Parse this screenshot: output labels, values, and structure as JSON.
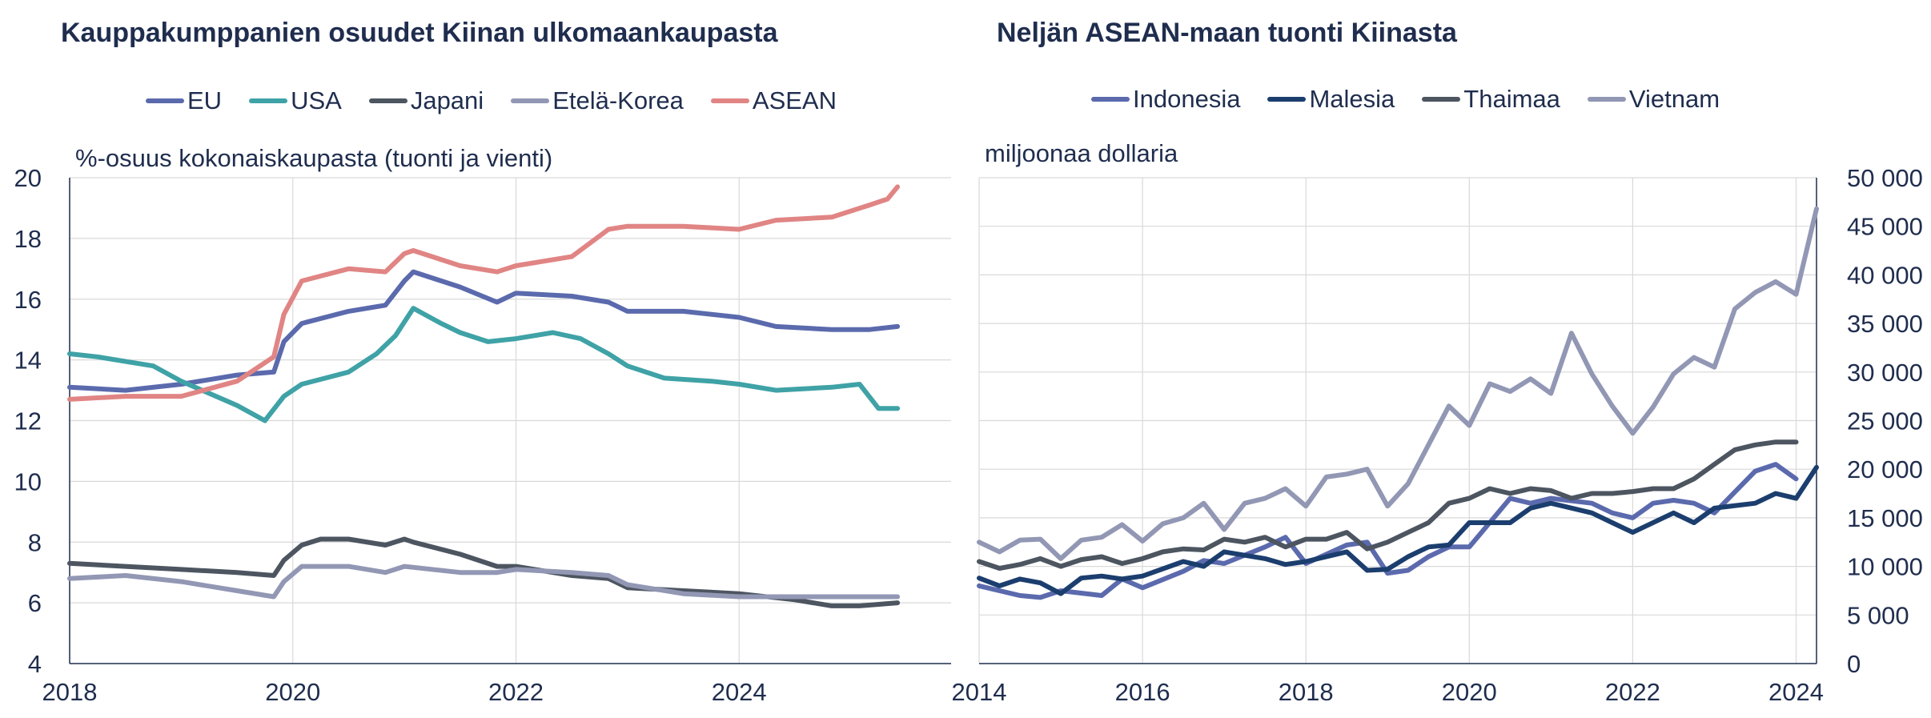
{
  "chart_data": [
    {
      "type": "line",
      "title": "Kauppakumppanien osuudet Kiinan ulkomaankaupasta",
      "ylabel": "%-osuus kokonaiskaupasta (tuonti ja vienti)",
      "ylim": [
        4,
        20
      ],
      "yticks": [
        "20",
        "18",
        "16",
        "14",
        "12",
        "10",
        "8",
        "6",
        "4"
      ],
      "xlim": [
        2018,
        2025.9
      ],
      "xticks": [
        "2018",
        "2020",
        "2022",
        "2024"
      ],
      "grid": true,
      "legend": "top",
      "series": [
        {
          "name": "EU",
          "color": "#5b6aad",
          "x": [
            2018.0,
            2018.5,
            2019.0,
            2019.5,
            2019.83,
            2019.92,
            2020.08,
            2020.5,
            2020.83,
            2021.0,
            2021.08,
            2021.5,
            2021.83,
            2022.0,
            2022.5,
            2022.83,
            2023.0,
            2023.5,
            2024.0,
            2024.33,
            2024.83,
            2025.17,
            2025.42
          ],
          "y": [
            13.1,
            13.0,
            13.2,
            13.5,
            13.6,
            14.6,
            15.2,
            15.6,
            15.8,
            16.6,
            16.9,
            16.4,
            15.9,
            16.2,
            16.1,
            15.9,
            15.6,
            15.6,
            15.4,
            15.1,
            15.0,
            15.0,
            15.1
          ]
        },
        {
          "name": "USA",
          "color": "#3fa2a6",
          "x": [
            2018.0,
            2018.25,
            2018.75,
            2019.0,
            2019.25,
            2019.5,
            2019.75,
            2019.92,
            2020.08,
            2020.5,
            2020.75,
            2020.92,
            2021.08,
            2021.33,
            2021.5,
            2021.75,
            2022.0,
            2022.33,
            2022.58,
            2022.83,
            2023.0,
            2023.33,
            2023.75,
            2024.0,
            2024.33,
            2024.83,
            2025.08,
            2025.25,
            2025.42
          ],
          "y": [
            14.2,
            14.1,
            13.8,
            13.3,
            12.9,
            12.5,
            12.0,
            12.8,
            13.2,
            13.6,
            14.2,
            14.8,
            15.7,
            15.2,
            14.9,
            14.6,
            14.7,
            14.9,
            14.7,
            14.2,
            13.8,
            13.4,
            13.3,
            13.2,
            13.0,
            13.1,
            13.2,
            12.4,
            12.4
          ]
        },
        {
          "name": "Japani",
          "color": "#4c5560",
          "x": [
            2018.0,
            2018.5,
            2019.0,
            2019.5,
            2019.83,
            2019.92,
            2020.08,
            2020.25,
            2020.5,
            2020.83,
            2021.0,
            2021.08,
            2021.5,
            2021.83,
            2022.0,
            2022.5,
            2022.83,
            2023.0,
            2023.5,
            2024.0,
            2024.5,
            2024.83,
            2025.08,
            2025.42
          ],
          "y": [
            7.3,
            7.2,
            7.1,
            7.0,
            6.9,
            7.4,
            7.9,
            8.1,
            8.1,
            7.9,
            8.1,
            8.0,
            7.6,
            7.2,
            7.2,
            6.9,
            6.8,
            6.5,
            6.4,
            6.3,
            6.1,
            5.9,
            5.9,
            6.0
          ]
        },
        {
          "name": "Etelä-Korea",
          "color": "#9297b4",
          "x": [
            2018.0,
            2018.5,
            2019.0,
            2019.5,
            2019.83,
            2019.92,
            2020.08,
            2020.5,
            2020.83,
            2021.0,
            2021.5,
            2021.83,
            2022.0,
            2022.5,
            2022.83,
            2023.0,
            2023.5,
            2024.0,
            2024.5,
            2024.83,
            2025.17,
            2025.42
          ],
          "y": [
            6.8,
            6.9,
            6.7,
            6.4,
            6.2,
            6.7,
            7.2,
            7.2,
            7.0,
            7.2,
            7.0,
            7.0,
            7.1,
            7.0,
            6.9,
            6.6,
            6.3,
            6.2,
            6.2,
            6.2,
            6.2,
            6.2
          ]
        },
        {
          "name": "ASEAN",
          "color": "#e08584",
          "x": [
            2018.0,
            2018.5,
            2019.0,
            2019.5,
            2019.83,
            2019.92,
            2020.08,
            2020.5,
            2020.83,
            2021.0,
            2021.08,
            2021.5,
            2021.83,
            2022.0,
            2022.5,
            2022.83,
            2023.0,
            2023.5,
            2024.0,
            2024.33,
            2024.83,
            2025.17,
            2025.33,
            2025.42
          ],
          "y": [
            12.7,
            12.8,
            12.8,
            13.3,
            14.1,
            15.5,
            16.6,
            17.0,
            16.9,
            17.5,
            17.6,
            17.1,
            16.9,
            17.1,
            17.4,
            18.3,
            18.4,
            18.4,
            18.3,
            18.6,
            18.7,
            19.1,
            19.3,
            19.7
          ]
        }
      ]
    },
    {
      "type": "line",
      "title": "Neljän ASEAN-maan tuonti Kiinasta",
      "ylabel": "miljoonaa dollaria",
      "ylim": [
        0,
        50000
      ],
      "yticks": [
        "50 000",
        "45 000",
        "40 000",
        "35 000",
        "30 000",
        "25 000",
        "20 000",
        "15 000",
        "10 000",
        "5 000",
        "0"
      ],
      "xlim": [
        2014,
        2024.25
      ],
      "xticks": [
        "2014",
        "2016",
        "2018",
        "2020",
        "2022",
        "2024"
      ],
      "grid": true,
      "legend": "top",
      "series": [
        {
          "name": "Indonesia",
          "color": "#5b6aad",
          "x": [
            2014.0,
            2014.5,
            2014.75,
            2015.0,
            2015.5,
            2015.75,
            2016.0,
            2016.5,
            2016.75,
            2017.0,
            2017.5,
            2017.75,
            2018.0,
            2018.5,
            2018.75,
            2019.0,
            2019.25,
            2019.5,
            2019.75,
            2020.0,
            2020.5,
            2020.75,
            2021.0,
            2021.5,
            2021.75,
            2022.0,
            2022.25,
            2022.5,
            2022.75,
            2023.0,
            2023.5,
            2023.75,
            2024.0
          ],
          "y": [
            8000,
            7000,
            6800,
            7500,
            7000,
            8700,
            7800,
            9500,
            10600,
            10300,
            12000,
            13000,
            10300,
            12200,
            12500,
            9300,
            9600,
            11000,
            12000,
            12000,
            17000,
            16500,
            17000,
            16500,
            15500,
            15000,
            16500,
            16800,
            16500,
            15500,
            19800,
            20500,
            19000
          ]
        },
        {
          "name": "Malesia",
          "color": "#1b3e6e",
          "x": [
            2014.0,
            2014.25,
            2014.5,
            2014.75,
            2015.0,
            2015.25,
            2015.5,
            2015.75,
            2016.0,
            2016.5,
            2016.75,
            2017.0,
            2017.5,
            2017.75,
            2018.0,
            2018.5,
            2018.75,
            2019.0,
            2019.25,
            2019.5,
            2019.75,
            2020.0,
            2020.5,
            2020.75,
            2021.0,
            2021.5,
            2021.75,
            2022.0,
            2022.5,
            2022.75,
            2023.0,
            2023.5,
            2023.75,
            2024.0,
            2024.25
          ],
          "y": [
            8800,
            8000,
            8700,
            8300,
            7200,
            8800,
            9000,
            8700,
            9000,
            10500,
            10000,
            11500,
            10800,
            10200,
            10500,
            11500,
            9600,
            9700,
            11000,
            12000,
            12200,
            14500,
            14500,
            16000,
            16500,
            15500,
            14500,
            13500,
            15500,
            14500,
            16000,
            16500,
            17500,
            17000,
            20200
          ]
        },
        {
          "name": "Thaimaa",
          "color": "#4c5560",
          "x": [
            2014.0,
            2014.25,
            2014.5,
            2014.75,
            2015.0,
            2015.25,
            2015.5,
            2015.75,
            2016.0,
            2016.25,
            2016.5,
            2016.75,
            2017.0,
            2017.25,
            2017.5,
            2017.75,
            2018.0,
            2018.25,
            2018.5,
            2018.75,
            2019.0,
            2019.25,
            2019.5,
            2019.75,
            2020.0,
            2020.25,
            2020.5,
            2020.75,
            2021.0,
            2021.25,
            2021.5,
            2021.75,
            2022.0,
            2022.25,
            2022.5,
            2022.75,
            2023.0,
            2023.25,
            2023.5,
            2023.75,
            2024.0
          ],
          "y": [
            10500,
            9800,
            10200,
            10800,
            10000,
            10700,
            11000,
            10300,
            10800,
            11500,
            11800,
            11700,
            12800,
            12500,
            13000,
            12000,
            12800,
            12800,
            13500,
            11800,
            12500,
            13500,
            14500,
            16500,
            17000,
            18000,
            17500,
            18000,
            17800,
            17000,
            17500,
            17500,
            17700,
            18000,
            18000,
            19000,
            20500,
            22000,
            22500,
            22800,
            22800
          ]
        },
        {
          "name": "Vietnam",
          "color": "#9297b4",
          "x": [
            2014.0,
            2014.25,
            2014.5,
            2014.75,
            2015.0,
            2015.25,
            2015.5,
            2015.75,
            2016.0,
            2016.25,
            2016.5,
            2016.75,
            2017.0,
            2017.25,
            2017.5,
            2017.75,
            2018.0,
            2018.25,
            2018.5,
            2018.75,
            2019.0,
            2019.25,
            2019.5,
            2019.75,
            2020.0,
            2020.25,
            2020.5,
            2020.75,
            2021.0,
            2021.25,
            2021.5,
            2021.75,
            2022.0,
            2022.25,
            2022.5,
            2022.75,
            2023.0,
            2023.25,
            2023.5,
            2023.75,
            2024.0,
            2024.25
          ],
          "y": [
            12500,
            11500,
            12700,
            12800,
            10800,
            12700,
            13000,
            14300,
            12600,
            14400,
            15000,
            16500,
            13800,
            16500,
            17000,
            18000,
            16200,
            19200,
            19500,
            20000,
            16200,
            18500,
            22500,
            26500,
            24500,
            28800,
            28000,
            29300,
            27800,
            34000,
            29800,
            26500,
            23700,
            26400,
            29800,
            31500,
            30500,
            36500,
            38200,
            39300,
            38000,
            46800
          ]
        }
      ]
    }
  ]
}
